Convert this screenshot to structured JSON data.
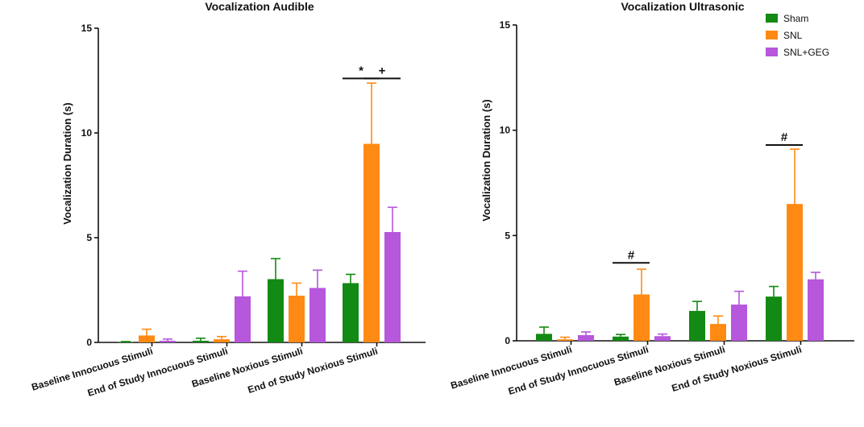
{
  "chart_data": [
    {
      "type": "bar",
      "title": "Vocalization Audible",
      "xlabel": "",
      "ylabel": "Vocalization Duration (s)",
      "ylim": [
        0,
        15
      ],
      "yticks": [
        0,
        5,
        10,
        15
      ],
      "categories": [
        "Baseline Innocuous Stimuli",
        "End of Study Innocuous Stimuli",
        "Baseline Noxious Stimuli",
        "End of Study Noxious Stimuli"
      ],
      "series": [
        {
          "name": "Sham",
          "color": "#138a13",
          "values": [
            0.02,
            0.08,
            3.02,
            2.83
          ],
          "errors": [
            0.02,
            0.12,
            0.98,
            0.42
          ]
        },
        {
          "name": "SNL",
          "color": "#ff8a13",
          "values": [
            0.33,
            0.15,
            2.23,
            9.48
          ],
          "errors": [
            0.3,
            0.13,
            0.6,
            2.9
          ]
        },
        {
          "name": "SNL+GEG",
          "color": "#b657dc",
          "values": [
            0.08,
            2.2,
            2.6,
            5.27
          ],
          "errors": [
            0.08,
            1.2,
            0.85,
            1.18
          ]
        }
      ],
      "annotations": [
        {
          "text": "*",
          "category": 3,
          "from_series": 0,
          "to_series": 1,
          "y": 12.6
        },
        {
          "text": "+",
          "category": 3,
          "from_series": 1,
          "to_series": 2,
          "y": 12.6
        }
      ]
    },
    {
      "type": "bar",
      "title": "Vocalization Ultrasonic",
      "xlabel": "",
      "ylabel": "Vocalization Duration (s)",
      "ylim": [
        0,
        15
      ],
      "yticks": [
        0,
        5,
        10,
        15
      ],
      "categories": [
        "Baseline Innocuous Stimuli",
        "End of Study Innocuous Stimuli",
        "Baseline Noxious Stimuli",
        "End of Study Noxious Stimuli"
      ],
      "series": [
        {
          "name": "Sham",
          "color": "#138a13",
          "values": [
            0.33,
            0.2,
            1.42,
            2.1
          ],
          "errors": [
            0.32,
            0.1,
            0.45,
            0.48
          ]
        },
        {
          "name": "SNL",
          "color": "#ff8a13",
          "values": [
            0.07,
            2.2,
            0.8,
            6.5
          ],
          "errors": [
            0.1,
            1.2,
            0.38,
            2.6
          ]
        },
        {
          "name": "SNL+GEG",
          "color": "#b657dc",
          "values": [
            0.27,
            0.22,
            1.72,
            2.92
          ],
          "errors": [
            0.15,
            0.1,
            0.63,
            0.33
          ]
        }
      ],
      "annotations": [
        {
          "text": "#",
          "category": 1,
          "from_series": 0,
          "to_series": 1,
          "y": 3.7
        },
        {
          "text": "#",
          "category": 3,
          "from_series": 0,
          "to_series": 1,
          "y": 9.3
        }
      ],
      "legend": {
        "position": "top-right",
        "entries": [
          "Sham",
          "SNL",
          "SNL+GEG"
        ]
      }
    }
  ]
}
